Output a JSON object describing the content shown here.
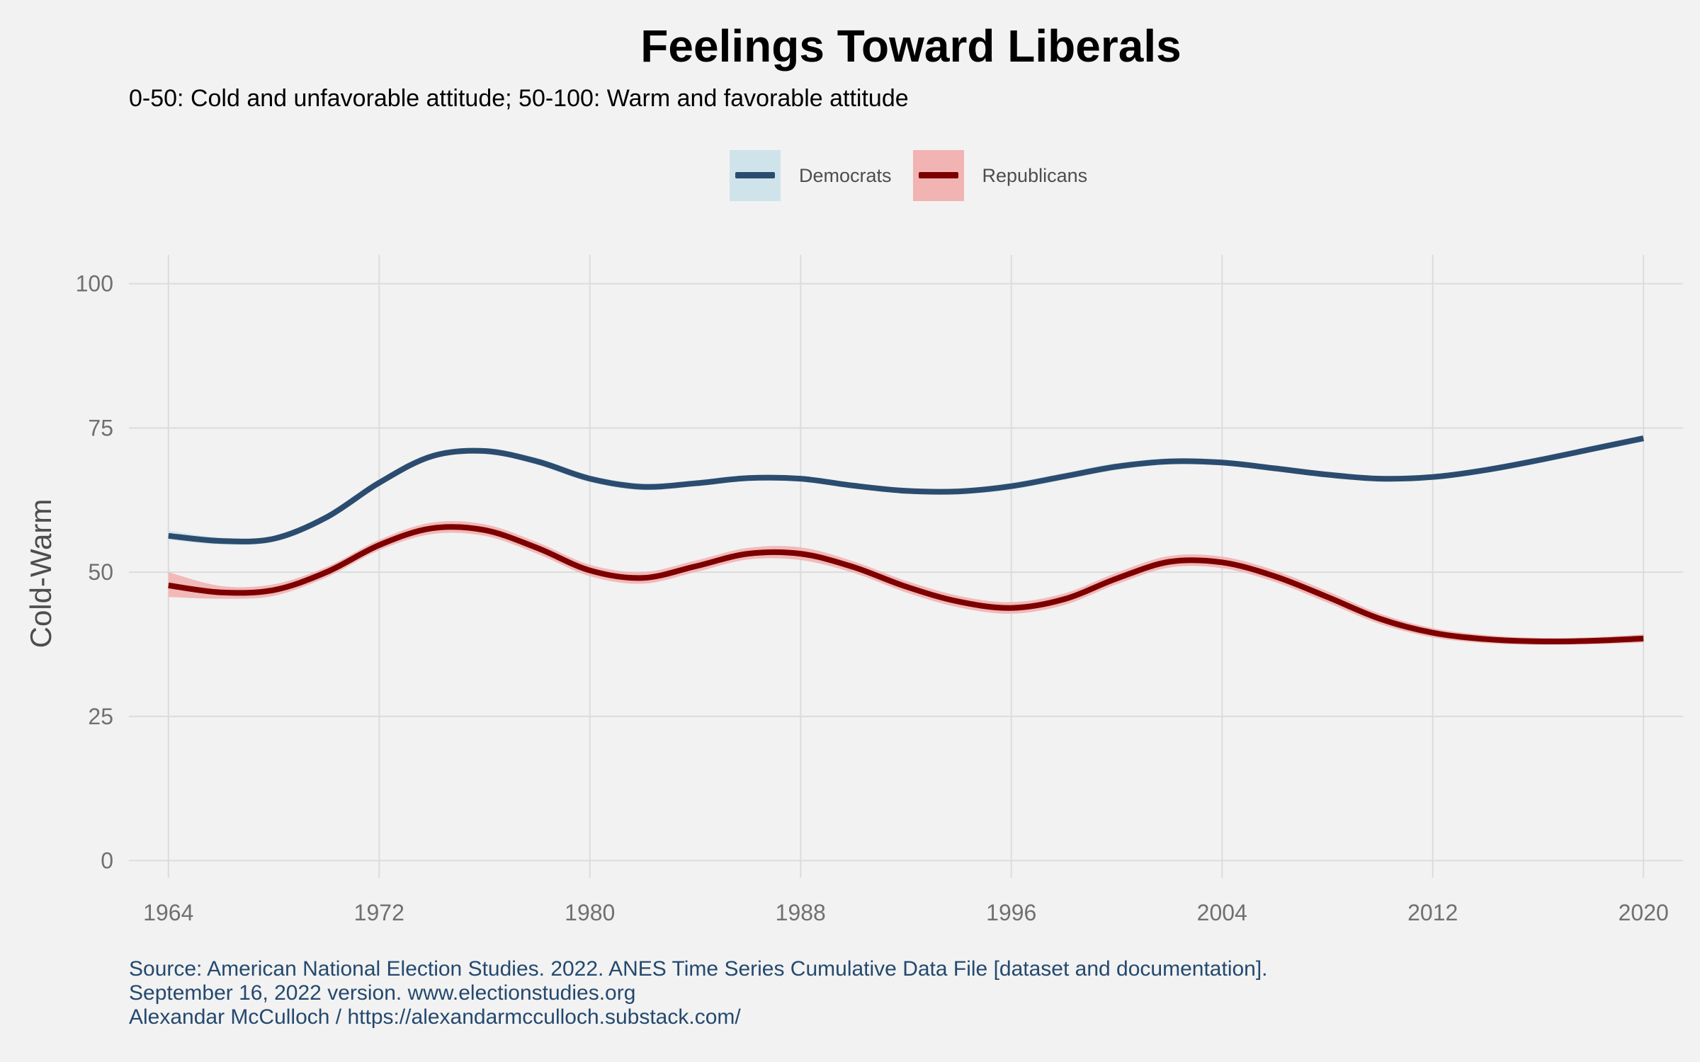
{
  "chart_data": {
    "type": "line",
    "title": "Feelings Toward Liberals",
    "subtitle": "0-50: Cold and unfavorable attitude; 50-100: Warm and favorable attitude",
    "xlabel": "",
    "ylabel": "Cold-Warm",
    "xlim": [
      1962.5,
      2021.5
    ],
    "ylim": [
      -3,
      105
    ],
    "xticks": [
      1964,
      1972,
      1980,
      1988,
      1996,
      2004,
      2012,
      2020
    ],
    "yticks": [
      0,
      25,
      50,
      75,
      100
    ],
    "grid": true,
    "legend_position": "top",
    "series": [
      {
        "name": "Democrats",
        "color": "#2b4c6f",
        "band_color": "#cfe3ea",
        "x": [
          1964,
          1966,
          1968,
          1970,
          1972,
          1974,
          1976,
          1978,
          1980,
          1982,
          1984,
          1986,
          1988,
          1990,
          1992,
          1994,
          1996,
          1998,
          2000,
          2002,
          2004,
          2006,
          2008,
          2010,
          2012,
          2014,
          2016,
          2018,
          2020
        ],
        "y": [
          56.3,
          55.4,
          55.8,
          59.5,
          65.5,
          70.1,
          71.0,
          69.2,
          66.2,
          64.8,
          65.4,
          66.3,
          66.2,
          65.0,
          64.1,
          64.0,
          64.9,
          66.6,
          68.3,
          69.2,
          69.0,
          68.0,
          66.9,
          66.2,
          66.5,
          67.7,
          69.4,
          71.3,
          73.2
        ],
        "lower": [
          55.6,
          54.8,
          55.3,
          59.0,
          65.0,
          69.6,
          70.5,
          68.6,
          65.6,
          64.2,
          64.9,
          65.8,
          65.7,
          64.5,
          63.7,
          63.5,
          64.3,
          66.0,
          67.7,
          68.7,
          68.5,
          67.5,
          66.5,
          65.8,
          66.0,
          67.2,
          68.9,
          70.8,
          72.6
        ],
        "upper": [
          57.2,
          56.0,
          56.3,
          60.0,
          66.0,
          70.6,
          71.5,
          69.8,
          66.8,
          65.4,
          65.9,
          66.8,
          66.7,
          65.5,
          64.5,
          64.5,
          65.5,
          67.2,
          68.9,
          69.7,
          69.5,
          68.5,
          67.3,
          66.6,
          67.0,
          68.2,
          69.9,
          71.8,
          73.8
        ]
      },
      {
        "name": "Republicans",
        "color": "#7d0000",
        "band_color": "#f2b3b3",
        "x": [
          1964,
          1966,
          1968,
          1970,
          1972,
          1974,
          1976,
          1978,
          1980,
          1982,
          1984,
          1986,
          1988,
          1990,
          1992,
          1994,
          1996,
          1998,
          2000,
          2002,
          2004,
          2006,
          2008,
          2010,
          2012,
          2014,
          2016,
          2018,
          2020
        ],
        "y": [
          47.7,
          46.5,
          46.9,
          50.0,
          54.7,
          57.6,
          57.3,
          54.2,
          50.3,
          49.0,
          51.0,
          53.2,
          53.2,
          50.9,
          47.5,
          44.9,
          43.8,
          45.3,
          48.9,
          51.8,
          51.7,
          49.3,
          45.7,
          41.9,
          39.5,
          38.4,
          38.0,
          38.1,
          38.5
        ],
        "lower": [
          45.7,
          45.4,
          45.9,
          49.1,
          53.8,
          56.6,
          56.3,
          53.2,
          49.3,
          48.0,
          50.0,
          52.2,
          52.1,
          49.9,
          46.5,
          43.9,
          42.8,
          44.3,
          47.9,
          50.8,
          50.7,
          48.3,
          44.7,
          41.0,
          38.7,
          37.7,
          37.4,
          37.5,
          37.8
        ],
        "upper": [
          50.0,
          47.6,
          47.9,
          50.9,
          55.6,
          58.6,
          58.3,
          55.2,
          51.3,
          50.0,
          52.0,
          54.2,
          54.3,
          51.9,
          48.5,
          45.9,
          44.8,
          46.3,
          49.9,
          52.8,
          52.7,
          50.3,
          46.7,
          42.8,
          40.3,
          39.1,
          38.6,
          38.7,
          39.2
        ]
      }
    ]
  },
  "caption": {
    "line1": "Source: American National Election Studies. 2022. ANES Time Series Cumulative Data File [dataset and documentation].",
    "line2": "September 16, 2022 version. www.electionstudies.org",
    "line3": "Alexandar McCulloch / https://alexandarmcculloch.substack.com/"
  }
}
